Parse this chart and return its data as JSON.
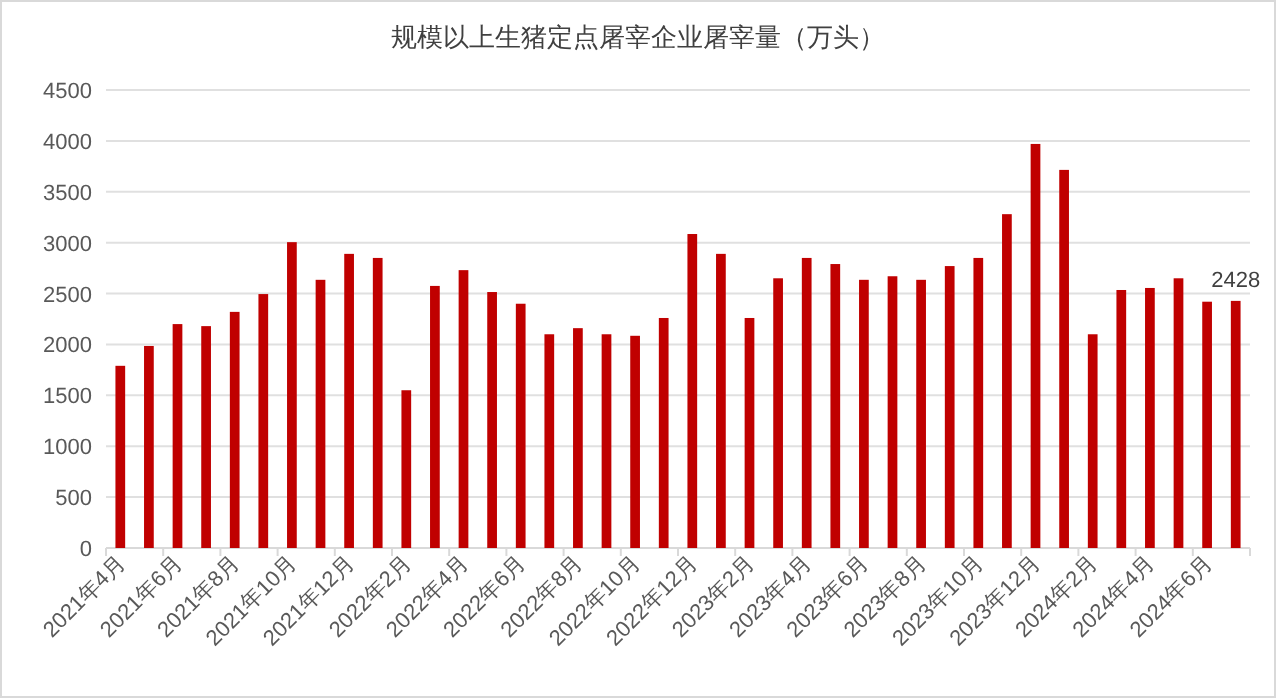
{
  "chart_data": {
    "type": "bar",
    "title": "规模以上生猪定点屠宰企业屠宰量（万头）",
    "categories": [
      "2021年4月",
      null,
      "2021年6月",
      null,
      "2021年8月",
      null,
      "2021年10月",
      null,
      "2021年12月",
      null,
      "2022年2月",
      null,
      "2022年4月",
      null,
      "2022年6月",
      null,
      "2022年8月",
      null,
      "2022年10月",
      null,
      "2022年12月",
      null,
      "2023年2月",
      null,
      "2023年4月",
      null,
      "2023年6月",
      null,
      "2023年8月",
      null,
      "2023年10月",
      null,
      "2023年12月",
      null,
      "2024年2月",
      null,
      "2024年4月",
      null,
      "2024年6月",
      null
    ],
    "values": [
      1790,
      1985,
      2200,
      2180,
      2320,
      2495,
      3005,
      2635,
      2890,
      2850,
      1550,
      2575,
      2730,
      2515,
      2400,
      2100,
      2160,
      2100,
      2085,
      2260,
      3085,
      2890,
      2260,
      2650,
      2850,
      2790,
      2635,
      2670,
      2635,
      2770,
      2850,
      3280,
      3970,
      3715,
      2100,
      2535,
      2555,
      2650,
      2420,
      2428
    ],
    "value_labels": [
      null,
      null,
      null,
      null,
      null,
      null,
      null,
      null,
      null,
      null,
      null,
      null,
      null,
      null,
      null,
      null,
      null,
      null,
      null,
      null,
      null,
      null,
      null,
      null,
      null,
      null,
      null,
      null,
      null,
      null,
      null,
      null,
      null,
      null,
      null,
      null,
      null,
      null,
      null,
      "2428"
    ],
    "color": "#c00000",
    "ylim": [
      0,
      4500
    ],
    "yticks": [
      0,
      500,
      1000,
      1500,
      2000,
      2500,
      3000,
      3500,
      4000,
      4500
    ],
    "grid": "y"
  }
}
